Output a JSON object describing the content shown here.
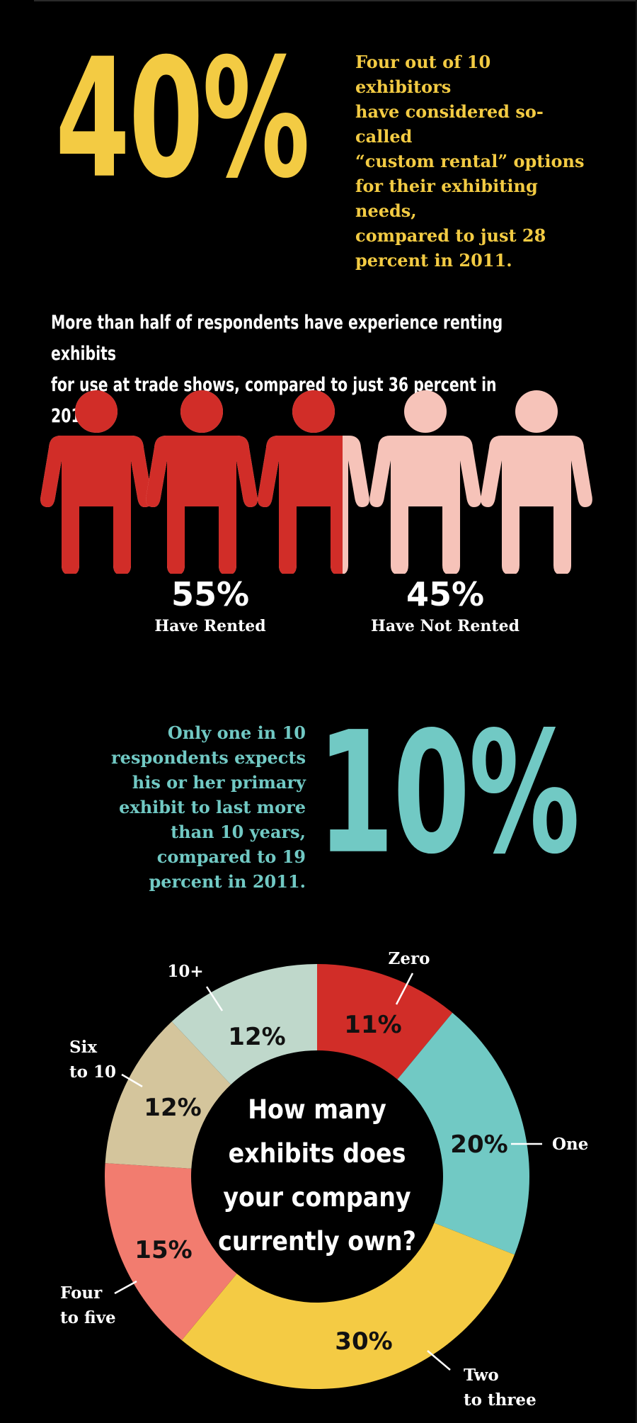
{
  "section1": {
    "value": "40%",
    "lines": [
      "Four out of 10 exhibitors",
      "have considered so-called",
      "“custom rental” options",
      "for their exhibiting needs,",
      "compared to just 28",
      "percent in 2011."
    ],
    "color": "#f3cb43"
  },
  "section2": {
    "heading_lines": [
      "More than half of respondents have experience renting exhibits",
      "for use at trade shows, compared to just 36 percent in 2011."
    ],
    "people_total": 5,
    "rented_fraction": 0.55,
    "colors": {
      "rented": "#d12d28",
      "not_rented": "#f6c3b9"
    },
    "stats": [
      {
        "value": "55%",
        "label": "Have Rented"
      },
      {
        "value": "45%",
        "label": "Have Not Rented"
      }
    ]
  },
  "section3": {
    "value": "10%",
    "lines": [
      "Only one in 10",
      "respondents expects",
      "his or her primary",
      "exhibit to last more",
      "than 10 years,",
      "compared to 19",
      "percent in 2011."
    ],
    "color": "#71c9c4"
  },
  "chart_data": {
    "type": "pie",
    "title": "How many exhibits does your company currently own?",
    "center_lines": [
      "How many",
      "exhibits does",
      "your company",
      "currently own?"
    ],
    "slices": [
      {
        "category": "Zero",
        "label_lines": [
          "Zero"
        ],
        "value": 11,
        "value_label": "11%",
        "color": "#d12d28"
      },
      {
        "category": "One",
        "label_lines": [
          "One"
        ],
        "value": 20,
        "value_label": "20%",
        "color": "#71c9c4"
      },
      {
        "category": "Two to three",
        "label_lines": [
          "Two",
          "to three"
        ],
        "value": 30,
        "value_label": "30%",
        "color": "#f4cb44"
      },
      {
        "category": "Four to five",
        "label_lines": [
          "Four",
          "to five"
        ],
        "value": 15,
        "value_label": "15%",
        "color": "#f27c6f"
      },
      {
        "category": "Six to 10",
        "label_lines": [
          "Six",
          "to 10"
        ],
        "value": 12,
        "value_label": "12%",
        "color": "#d4c59c"
      },
      {
        "category": "10+",
        "label_lines": [
          "10+"
        ],
        "value": 12,
        "value_label": "12%",
        "color": "#bfd8cb"
      }
    ]
  }
}
